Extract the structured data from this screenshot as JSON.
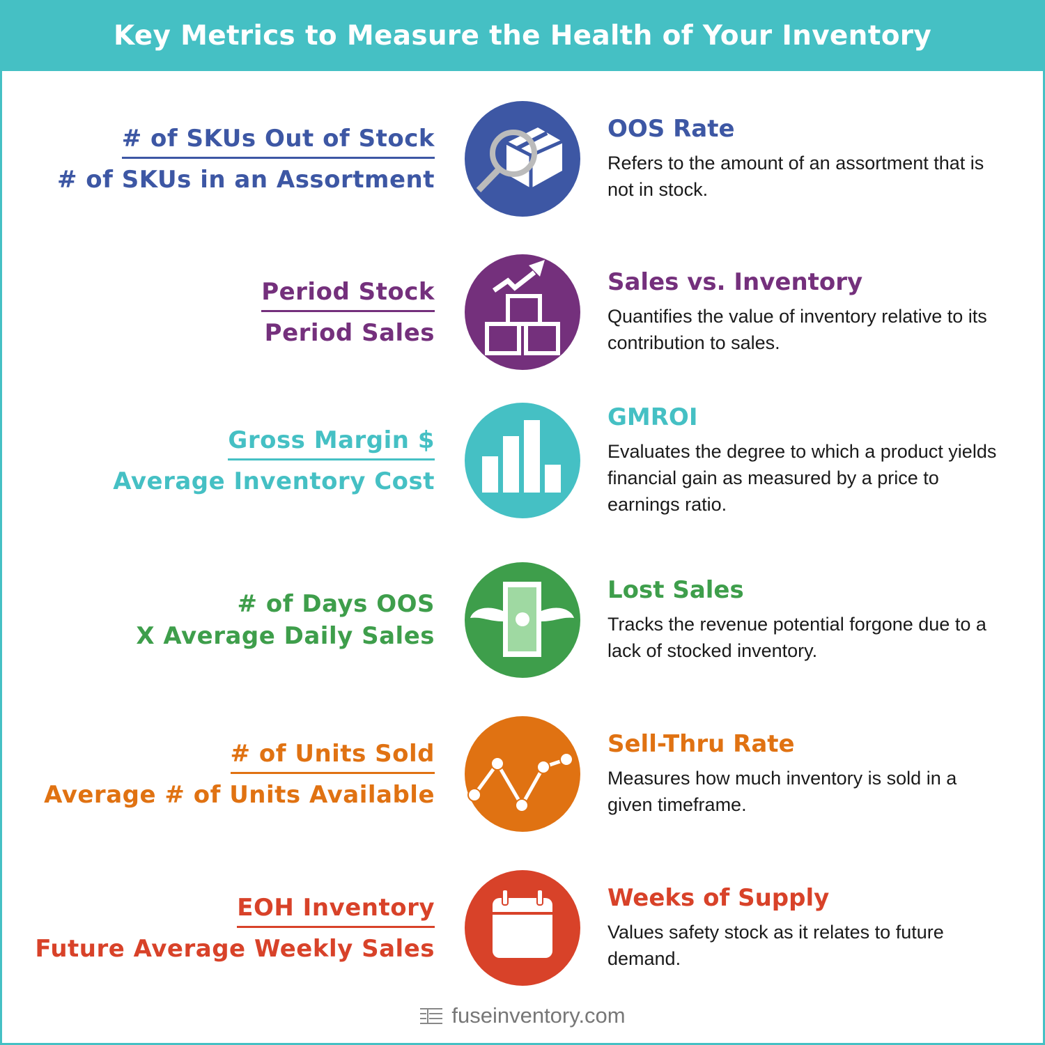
{
  "title": "Key Metrics to Measure the Health of Your Inventory",
  "metrics": [
    {
      "numerator": "# of SKUs Out of Stock",
      "denominator": "# of SKUs in an Assortment",
      "operator": "divide",
      "name": "OOS Rate",
      "description": "Refers to the amount of an assortment that is not in stock.",
      "color": "#3d57a4",
      "icon": "box-magnifier-icon"
    },
    {
      "numerator": "Period Stock",
      "denominator": "Period Sales",
      "operator": "divide",
      "name": "Sales vs. Inventory",
      "description": "Quantifies the value of inventory relative to its contribution to sales.",
      "color": "#74307c",
      "icon": "boxes-trend-icon"
    },
    {
      "numerator": "Gross Margin $",
      "denominator": "Average Inventory Cost",
      "operator": "divide",
      "name": "GMROI",
      "description": "Evaluates the degree to which a product yields financial gain as measured by a price to earnings ratio.",
      "color": "#45c0c4",
      "icon": "bar-chart-icon"
    },
    {
      "numerator": "# of Days OOS",
      "denominator": "X Average Daily Sales",
      "operator": "multiply",
      "name": "Lost Sales",
      "description": "Tracks the revenue potential forgone due to a lack of stocked inventory.",
      "color": "#3e9e4b",
      "icon": "flying-money-icon"
    },
    {
      "numerator": "# of Units Sold",
      "denominator": "Average # of Units Available",
      "operator": "divide",
      "name": "Sell-Thru Rate",
      "description": "Measures how much inventory is sold in a given timeframe.",
      "color": "#e07212",
      "icon": "line-chart-icon"
    },
    {
      "numerator": "EOH Inventory",
      "denominator": "Future Average Weekly Sales",
      "operator": "divide",
      "name": "Weeks of Supply",
      "description": "Values safety stock as it relates to future demand.",
      "color": "#d84229",
      "icon": "calendar-icon"
    }
  ],
  "footer": {
    "site": "fuseinventory.com",
    "icon": "fuse-logo-icon"
  }
}
